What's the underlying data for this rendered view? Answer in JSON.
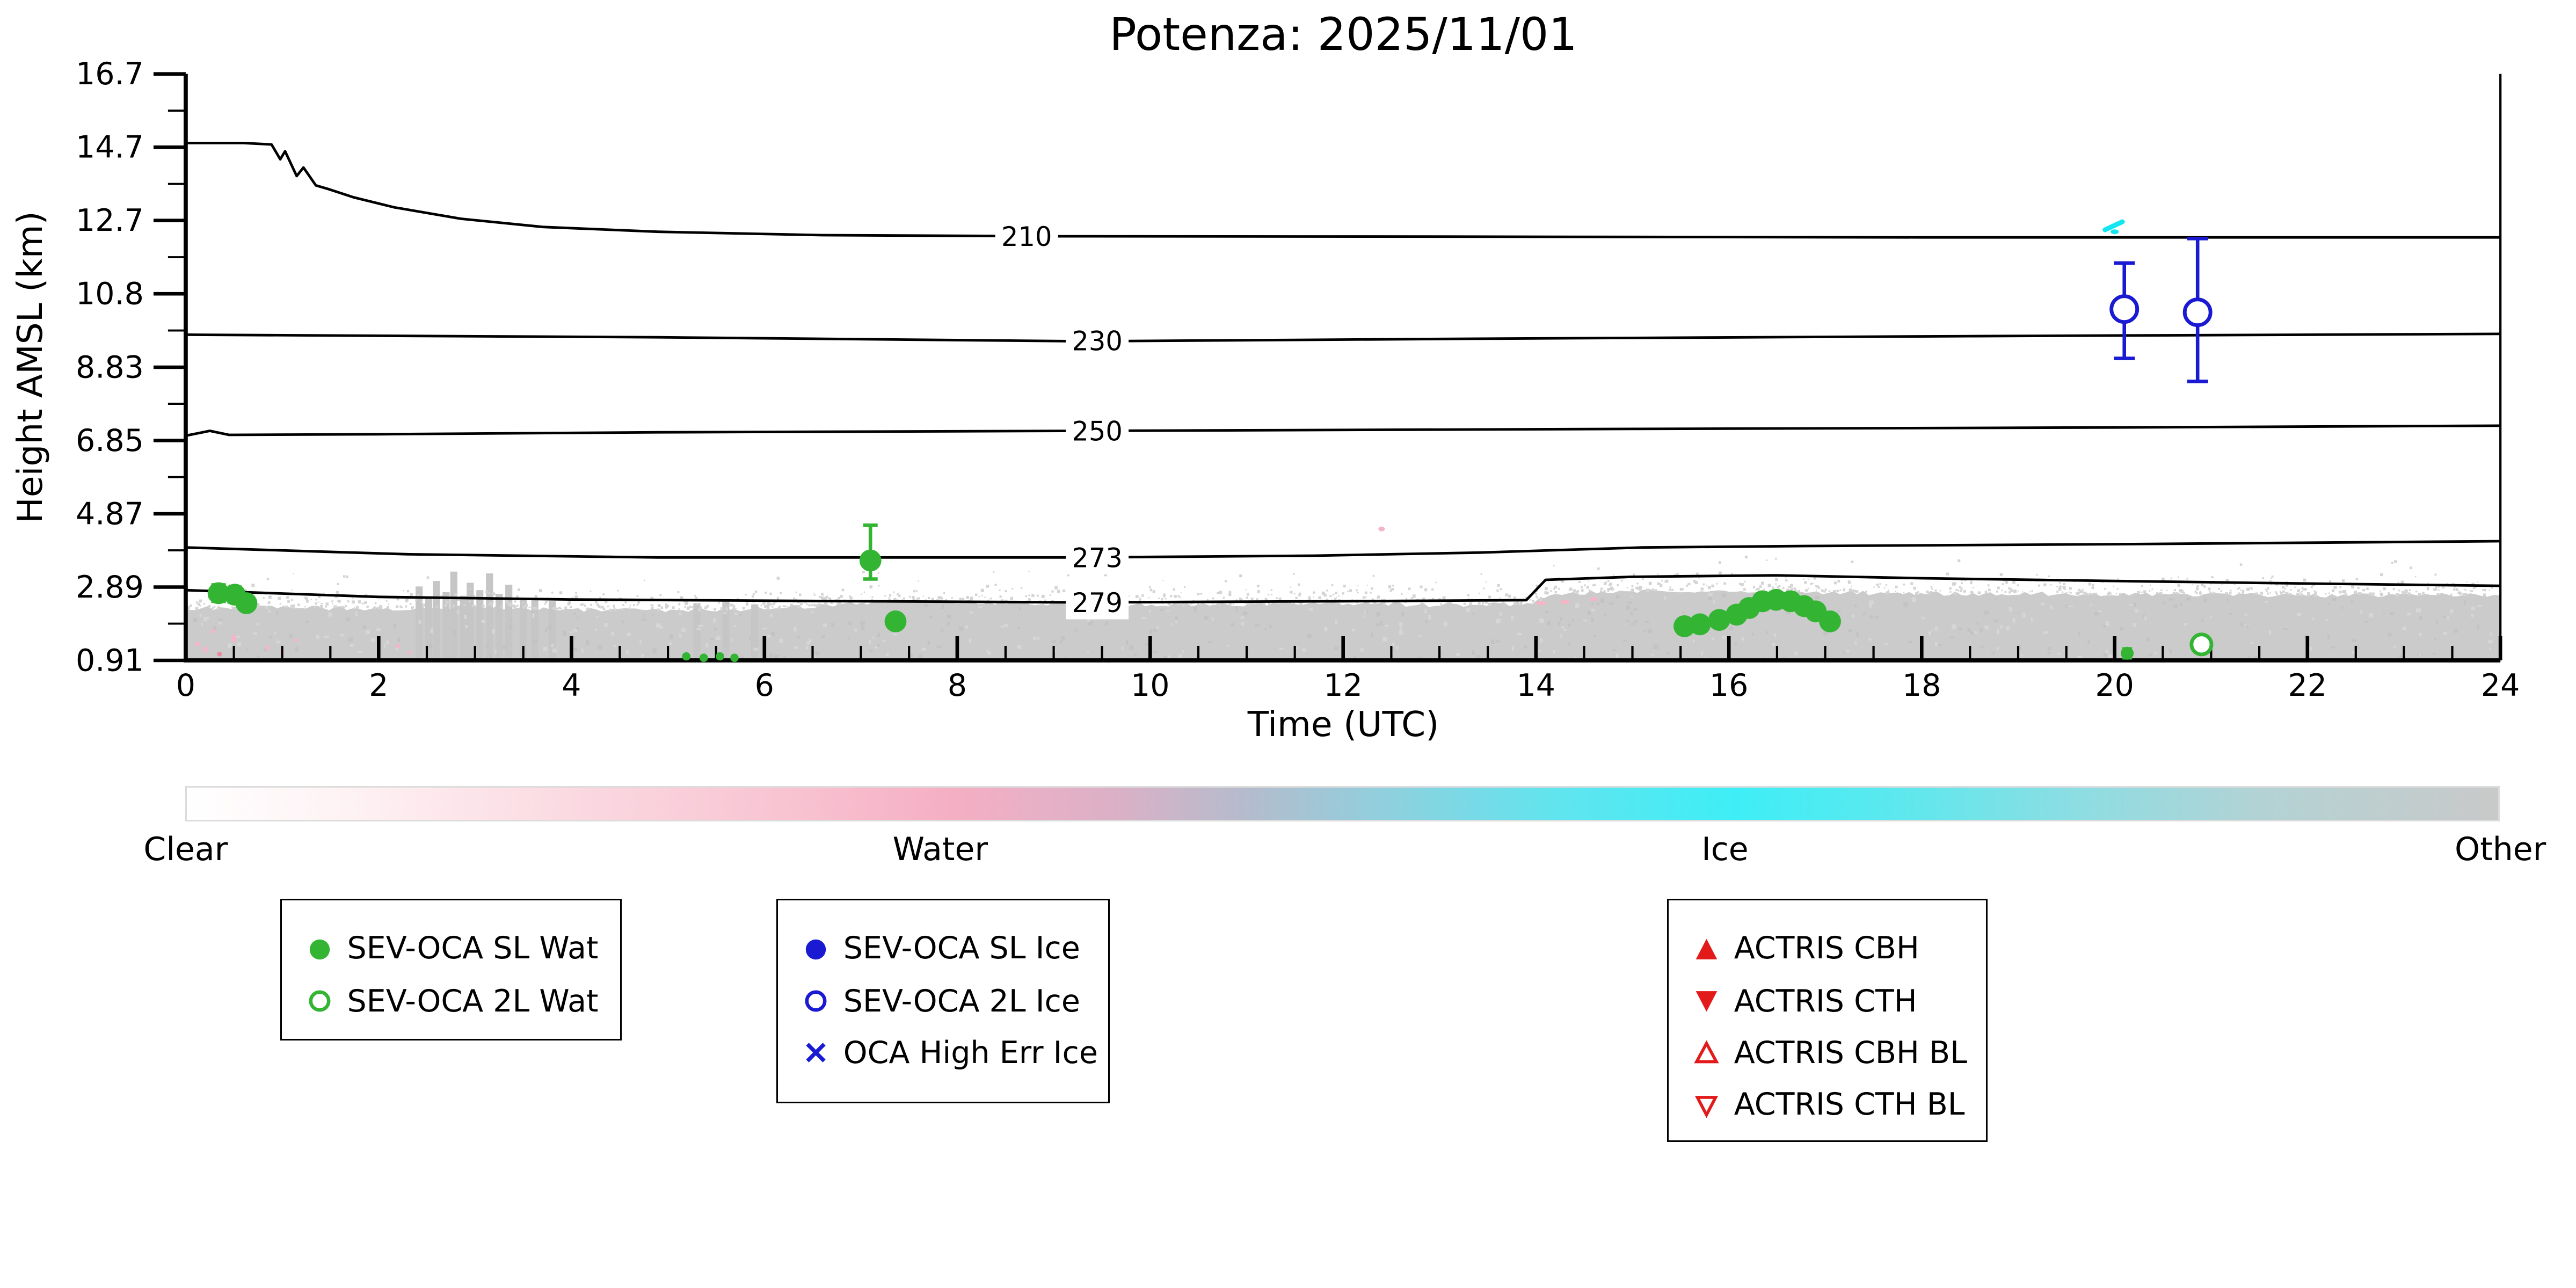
{
  "chart_data": {
    "type": "scatter",
    "title": "Potenza: 2025/11/01",
    "xlabel": "Time (UTC)",
    "ylabel": "Height AMSL (km)",
    "xlim": [
      0,
      24
    ],
    "ylim": [
      0.91,
      16.7
    ],
    "x_major_ticks": [
      0,
      2,
      4,
      6,
      8,
      10,
      12,
      14,
      16,
      18,
      20,
      22,
      24
    ],
    "x_minor_step": 0.5,
    "y_tick_labels": [
      "16.7",
      "14.7",
      "12.7",
      "10.8",
      "8.83",
      "6.85",
      "4.87",
      "2.89",
      "0.91"
    ],
    "grid": false,
    "legend_position": "below",
    "temperature_contours_K": [
      {
        "label": "210",
        "label_t": 8.72,
        "label_h": 12.33,
        "points": [
          [
            0,
            14.84
          ],
          [
            0.6,
            14.84
          ],
          [
            0.89,
            14.8
          ],
          [
            0.98,
            14.4
          ],
          [
            1.03,
            14.62
          ],
          [
            1.15,
            13.95
          ],
          [
            1.22,
            14.18
          ],
          [
            1.35,
            13.7
          ],
          [
            1.48,
            13.6
          ],
          [
            1.74,
            13.38
          ],
          [
            2.16,
            13.11
          ],
          [
            2.85,
            12.8
          ],
          [
            3.7,
            12.58
          ],
          [
            4.9,
            12.45
          ],
          [
            6.6,
            12.36
          ],
          [
            9,
            12.33
          ],
          [
            13,
            12.32
          ],
          [
            18,
            12.3
          ],
          [
            24,
            12.3
          ]
        ]
      },
      {
        "label": "230",
        "label_t": 9.45,
        "label_h": 9.52,
        "points": [
          [
            0,
            9.68
          ],
          [
            4.9,
            9.61
          ],
          [
            9.3,
            9.5
          ],
          [
            13.4,
            9.57
          ],
          [
            18.5,
            9.64
          ],
          [
            24,
            9.7
          ]
        ]
      },
      {
        "label": "250",
        "label_t": 9.45,
        "label_h": 7.09,
        "points": [
          [
            0,
            6.96
          ],
          [
            0.25,
            7.09
          ],
          [
            0.45,
            6.98
          ],
          [
            2,
            7.0
          ],
          [
            4.9,
            7.05
          ],
          [
            9.3,
            7.09
          ],
          [
            15,
            7.14
          ],
          [
            20,
            7.18
          ],
          [
            24,
            7.23
          ]
        ]
      },
      {
        "label": "273",
        "label_t": 9.45,
        "label_h": 3.68,
        "points": [
          [
            0,
            3.95
          ],
          [
            2.3,
            3.77
          ],
          [
            4.9,
            3.68
          ],
          [
            9.3,
            3.68
          ],
          [
            11.7,
            3.73
          ],
          [
            13.4,
            3.81
          ],
          [
            15.1,
            3.95
          ],
          [
            16.8,
            3.99
          ],
          [
            20.2,
            4.04
          ],
          [
            24,
            4.12
          ]
        ]
      },
      {
        "label": "279",
        "label_t": 9.45,
        "label_h": 2.47,
        "points": [
          [
            0,
            2.8
          ],
          [
            2,
            2.62
          ],
          [
            4,
            2.55
          ],
          [
            7,
            2.5
          ],
          [
            9.3,
            2.47
          ],
          [
            12,
            2.5
          ],
          [
            13.9,
            2.53
          ],
          [
            14.1,
            3.08
          ],
          [
            15,
            3.16
          ],
          [
            16.5,
            3.2
          ],
          [
            18,
            3.12
          ],
          [
            20,
            3.05
          ],
          [
            22,
            2.98
          ],
          [
            24,
            2.92
          ]
        ]
      }
    ],
    "cloud_band": {
      "class_name": "Other",
      "color": "#cbcbcb",
      "top_edge": [
        [
          0,
          2.3
        ],
        [
          1,
          2.34
        ],
        [
          2,
          2.3
        ],
        [
          3,
          2.36
        ],
        [
          4,
          2.27
        ],
        [
          5,
          2.25
        ],
        [
          6,
          2.3
        ],
        [
          6.8,
          2.42
        ],
        [
          7.5,
          2.52
        ],
        [
          8.2,
          2.48
        ],
        [
          9,
          2.43
        ],
        [
          10,
          2.4
        ],
        [
          11,
          2.42
        ],
        [
          12,
          2.45
        ],
        [
          13,
          2.4
        ],
        [
          13.95,
          2.42
        ],
        [
          14.15,
          2.72
        ],
        [
          15,
          2.78
        ],
        [
          16,
          2.8
        ],
        [
          17,
          2.75
        ],
        [
          18,
          2.7
        ],
        [
          19,
          2.72
        ],
        [
          20,
          2.67
        ],
        [
          21,
          2.7
        ],
        [
          22,
          2.66
        ],
        [
          23,
          2.68
        ],
        [
          24,
          2.65
        ]
      ],
      "streak_columns": [
        [
          2.42,
          2.9
        ],
        [
          2.52,
          2.6
        ],
        [
          2.6,
          3.05
        ],
        [
          2.7,
          2.75
        ],
        [
          2.78,
          3.3
        ],
        [
          2.88,
          2.65
        ],
        [
          2.95,
          3.0
        ],
        [
          3.05,
          2.8
        ],
        [
          3.15,
          3.25
        ],
        [
          3.25,
          2.7
        ],
        [
          3.35,
          2.95
        ],
        [
          3.5,
          2.6
        ],
        [
          3.62,
          2.55
        ],
        [
          3.8,
          2.5
        ],
        [
          5.3,
          2.45
        ],
        [
          5.6,
          2.5
        ],
        [
          5.9,
          2.42
        ]
      ]
    },
    "specks": [
      {
        "t": 0.12,
        "h": 1.35,
        "color": "#f4b6c6",
        "w": 3,
        "hh": 3
      },
      {
        "t": 0.2,
        "h": 1.2,
        "color": "#f4b6c6",
        "w": 3,
        "hh": 4
      },
      {
        "t": 0.28,
        "h": 1.7,
        "color": "#f4b6c6",
        "w": 2.5,
        "hh": 3
      },
      {
        "t": 0.35,
        "h": 1.08,
        "color": "#ec8aa4",
        "w": 3,
        "hh": 3
      },
      {
        "t": 0.5,
        "h": 1.5,
        "color": "#f4b6c6",
        "w": 3,
        "hh": 5
      },
      {
        "t": 0.85,
        "h": 1.25,
        "color": "#f4b6c6",
        "w": 2.5,
        "hh": 3
      },
      {
        "t": 1.0,
        "h": 1.12,
        "color": "#f4b6c6",
        "w": 2.5,
        "hh": 3
      },
      {
        "t": 1.15,
        "h": 1.45,
        "color": "#f4b6c6",
        "w": 2,
        "hh": 2.5
      },
      {
        "t": 2.2,
        "h": 1.3,
        "color": "#f4b6c6",
        "w": 2.5,
        "hh": 3
      },
      {
        "t": 2.32,
        "h": 1.12,
        "color": "#f4b6c6",
        "w": 2,
        "hh": 2.5
      },
      {
        "t": 14.05,
        "h": 2.45,
        "color": "#f4b6c6",
        "w": 7,
        "hh": 2.5
      },
      {
        "t": 14.3,
        "h": 2.48,
        "color": "#f4b6c6",
        "w": 6,
        "hh": 2.5
      },
      {
        "t": 14.6,
        "h": 2.56,
        "color": "#f4b6c6",
        "w": 5,
        "hh": 2.5
      },
      {
        "t": 12.4,
        "h": 4.45,
        "color": "#f4b6c6",
        "w": 4,
        "hh": 3
      },
      {
        "t": 20.0,
        "h": 12.45,
        "color": "#12e6f0",
        "w": 5,
        "hh": 3
      }
    ],
    "cyan_dash": {
      "t1": 19.9,
      "h1": 12.5,
      "t2": 20.08,
      "h2": 12.72,
      "color": "#12e6f0"
    },
    "series": [
      {
        "name": "SEV-OCA SL Wat",
        "marker": "filled-circle",
        "color": "#33b533",
        "size": 6.8,
        "points": [
          {
            "t": 0.34,
            "h": 2.72,
            "elo": 0.22,
            "ehi": 0.22
          },
          {
            "t": 0.51,
            "h": 2.68,
            "elo": 0.2,
            "ehi": 0.2
          },
          {
            "t": 0.63,
            "h": 2.45,
            "elo": 0.18,
            "ehi": 0.18
          },
          {
            "t": 7.1,
            "h": 3.6,
            "elo": 0.5,
            "ehi": 0.95
          },
          {
            "t": 7.36,
            "h": 1.96,
            "elo": 0.16,
            "ehi": 0.16
          },
          {
            "t": 15.54,
            "h": 1.83,
            "elo": 0.12,
            "ehi": 0.12
          },
          {
            "t": 15.7,
            "h": 1.88,
            "elo": 0.12,
            "ehi": 0.12
          },
          {
            "t": 15.9,
            "h": 2.0,
            "elo": 0.13,
            "ehi": 0.13
          },
          {
            "t": 16.08,
            "h": 2.14,
            "elo": 0.13,
            "ehi": 0.13
          },
          {
            "t": 16.21,
            "h": 2.32,
            "elo": 0.14,
            "ehi": 0.14
          },
          {
            "t": 16.35,
            "h": 2.5,
            "elo": 0.18,
            "ehi": 0.18
          },
          {
            "t": 16.49,
            "h": 2.54,
            "elo": 0.18,
            "ehi": 0.18
          },
          {
            "t": 16.64,
            "h": 2.5,
            "elo": 0.15,
            "ehi": 0.15
          },
          {
            "t": 16.78,
            "h": 2.37,
            "elo": 0.13,
            "ehi": 0.13
          },
          {
            "t": 16.9,
            "h": 2.23,
            "elo": 0.12,
            "ehi": 0.12
          },
          {
            "t": 17.05,
            "h": 1.96,
            "elo": 0.12,
            "ehi": 0.12
          },
          {
            "t": 20.13,
            "h": 1.1,
            "elo": 0.12,
            "ehi": 0.12,
            "r": 4
          },
          {
            "t": 5.19,
            "h": 1.02,
            "r": 2.6
          },
          {
            "t": 5.37,
            "h": 0.98,
            "r": 2.6
          },
          {
            "t": 5.54,
            "h": 1.02,
            "r": 2.6
          },
          {
            "t": 5.69,
            "h": 0.98,
            "r": 2.6
          }
        ]
      },
      {
        "name": "SEV-OCA 2L Wat",
        "marker": "open-circle",
        "color": "#33b533",
        "size": 6.2,
        "points": [
          {
            "t": 20.9,
            "h": 1.34
          }
        ]
      },
      {
        "name": "SEV-OCA SL Ice",
        "marker": "filled-circle",
        "color": "#1a1ad2",
        "size": 7,
        "points": []
      },
      {
        "name": "SEV-OCA 2L Ice",
        "marker": "open-circle",
        "color": "#1a1ad2",
        "size": 8,
        "points": [
          {
            "t": 20.1,
            "h": 10.37,
            "elo": 1.33,
            "ehi": 1.24
          },
          {
            "t": 20.86,
            "h": 10.28,
            "elo": 1.86,
            "ehi": 1.99
          }
        ]
      },
      {
        "name": "OCA High Err Ice",
        "marker": "x",
        "color": "#1a1ad2",
        "size": 7,
        "points": []
      },
      {
        "name": "ACTRIS CBH",
        "marker": "filled-triangle-up",
        "color": "#e31a1a",
        "size": 7,
        "points": []
      },
      {
        "name": "ACTRIS CTH",
        "marker": "filled-triangle-down",
        "color": "#e31a1a",
        "size": 7,
        "points": []
      },
      {
        "name": "ACTRIS CBH BL",
        "marker": "open-triangle-up",
        "color": "#e31a1a",
        "size": 7,
        "points": []
      },
      {
        "name": "ACTRIS CTH BL",
        "marker": "open-triangle-down",
        "color": "#e31a1a",
        "size": 7,
        "points": []
      }
    ],
    "colorbar": {
      "labels": [
        {
          "text": "Clear",
          "frac": 0.0
        },
        {
          "text": "Water",
          "frac": 0.326
        },
        {
          "text": "Ice",
          "frac": 0.665
        },
        {
          "text": "Other",
          "frac": 1.0
        }
      ],
      "stops": [
        {
          "pos": 0,
          "color": "#ffffff"
        },
        {
          "pos": 0.07,
          "color": "#fef2f4"
        },
        {
          "pos": 0.16,
          "color": "#fbdbe3"
        },
        {
          "pos": 0.26,
          "color": "#f8c3d2"
        },
        {
          "pos": 0.33,
          "color": "#f5afc4"
        },
        {
          "pos": 0.4,
          "color": "#dcb0c6"
        },
        {
          "pos": 0.46,
          "color": "#b3bccd"
        },
        {
          "pos": 0.52,
          "color": "#8fd0de"
        },
        {
          "pos": 0.59,
          "color": "#62e4ee"
        },
        {
          "pos": 0.67,
          "color": "#3eeef6"
        },
        {
          "pos": 0.74,
          "color": "#5ce8ee"
        },
        {
          "pos": 0.82,
          "color": "#8edde2"
        },
        {
          "pos": 0.9,
          "color": "#b4d2d4"
        },
        {
          "pos": 1,
          "color": "#c9c9c9"
        }
      ]
    }
  },
  "legend_boxes": [
    {
      "items": [
        {
          "label": "SEV-OCA SL Wat",
          "marker": "filled-circle",
          "color": "#33b533"
        },
        {
          "label": "SEV-OCA 2L Wat",
          "marker": "open-circle",
          "color": "#33b533"
        }
      ]
    },
    {
      "items": [
        {
          "label": "SEV-OCA SL Ice",
          "marker": "filled-circle",
          "color": "#1a1ad2"
        },
        {
          "label": "SEV-OCA 2L Ice",
          "marker": "open-circle",
          "color": "#1a1ad2"
        },
        {
          "label": "OCA High Err Ice",
          "marker": "x",
          "color": "#1a1ad2"
        }
      ]
    },
    {
      "items": [
        {
          "label": "ACTRIS CBH",
          "marker": "filled-triangle-up",
          "color": "#e31a1a"
        },
        {
          "label": "ACTRIS CTH",
          "marker": "filled-triangle-down",
          "color": "#e31a1a"
        },
        {
          "label": "ACTRIS CBH BL",
          "marker": "open-triangle-up",
          "color": "#e31a1a"
        },
        {
          "label": "ACTRIS CTH BL",
          "marker": "open-triangle-down",
          "color": "#e31a1a"
        }
      ]
    }
  ]
}
